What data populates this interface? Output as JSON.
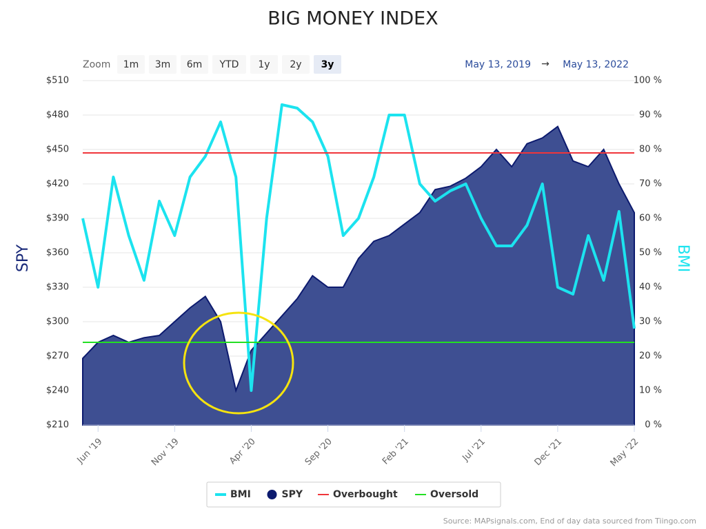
{
  "chart_data": {
    "type": "line",
    "title": "BIG MONEY INDEX",
    "zoom": {
      "label": "Zoom",
      "buttons": [
        "1m",
        "3m",
        "6m",
        "YTD",
        "1y",
        "2y",
        "3y"
      ],
      "selected": 6
    },
    "range": {
      "from": "May 13, 2019",
      "arrow": "→",
      "to": "May 13, 2022"
    },
    "source": "Source: MAPsignals.com, End of day data sourced from Tiingo.com",
    "y_label": "SPY",
    "y2_label": "BMI",
    "x": [
      "2019-05",
      "2019-06",
      "2019-07",
      "2019-08",
      "2019-09",
      "2019-10",
      "2019-11",
      "2019-12",
      "2020-01",
      "2020-02",
      "2020-03",
      "2020-04",
      "2020-05",
      "2020-06",
      "2020-07",
      "2020-08",
      "2020-09",
      "2020-10",
      "2020-11",
      "2020-12",
      "2021-01",
      "2021-02",
      "2021-03",
      "2021-04",
      "2021-05",
      "2021-06",
      "2021-07",
      "2021-08",
      "2021-09",
      "2021-10",
      "2021-11",
      "2021-12",
      "2022-01",
      "2022-02",
      "2022-03",
      "2022-04",
      "2022-05"
    ],
    "xlim": [
      "2019-05",
      "2022-05"
    ],
    "xticks": [
      {
        "value": "2019-06",
        "label": "Jun '19"
      },
      {
        "value": "2019-11",
        "label": "Nov '19"
      },
      {
        "value": "2020-04",
        "label": "Apr '20"
      },
      {
        "value": "2020-09",
        "label": "Sep '20"
      },
      {
        "value": "2021-02",
        "label": "Feb '21"
      },
      {
        "value": "2021-07",
        "label": "Jul '21"
      },
      {
        "value": "2021-12",
        "label": "Dec '21"
      },
      {
        "value": "2022-05",
        "label": "May '22"
      }
    ],
    "ylim": [
      210,
      510
    ],
    "yticks": [
      {
        "value": 210,
        "label": "$210"
      },
      {
        "value": 240,
        "label": "$240"
      },
      {
        "value": 270,
        "label": "$270"
      },
      {
        "value": 300,
        "label": "$300"
      },
      {
        "value": 330,
        "label": "$330"
      },
      {
        "value": 360,
        "label": "$360"
      },
      {
        "value": 390,
        "label": "$390"
      },
      {
        "value": 420,
        "label": "$420"
      },
      {
        "value": 450,
        "label": "$450"
      },
      {
        "value": 480,
        "label": "$480"
      },
      {
        "value": 510,
        "label": "$510"
      }
    ],
    "y2lim": [
      0,
      100
    ],
    "y2ticks": [
      {
        "value": 0,
        "label": "0 %"
      },
      {
        "value": 10,
        "label": "10 %"
      },
      {
        "value": 20,
        "label": "20 %"
      },
      {
        "value": 30,
        "label": "30 %"
      },
      {
        "value": 40,
        "label": "40 %"
      },
      {
        "value": 50,
        "label": "50 %"
      },
      {
        "value": 60,
        "label": "60 %"
      },
      {
        "value": 70,
        "label": "70 %"
      },
      {
        "value": 80,
        "label": "80 %"
      },
      {
        "value": 90,
        "label": "90 %"
      },
      {
        "value": 100,
        "label": "100 %"
      }
    ],
    "grid": true,
    "legend": "bottom",
    "series": [
      {
        "name": "BMI",
        "color": "#1ce3ef",
        "axis": "y2",
        "kind": "line",
        "values": [
          60,
          40,
          72,
          55,
          42,
          65,
          55,
          72,
          78,
          88,
          72,
          10,
          60,
          93,
          92,
          88,
          78,
          55,
          60,
          72,
          90,
          90,
          70,
          65,
          68,
          70,
          60,
          52,
          52,
          58,
          70,
          40,
          38,
          55,
          42,
          62,
          28
        ]
      },
      {
        "name": "SPY",
        "color": "#0c1a6e",
        "fill": "#3e4f92",
        "kind": "area",
        "values": [
          268,
          282,
          288,
          282,
          286,
          288,
          300,
          312,
          322,
          300,
          240,
          275,
          290,
          305,
          320,
          340,
          330,
          330,
          355,
          370,
          375,
          385,
          395,
          415,
          418,
          425,
          435,
          450,
          435,
          455,
          460,
          470,
          440,
          435,
          450,
          420,
          395
        ]
      }
    ],
    "reference_lines": [
      {
        "name": "Overbought",
        "value": 79,
        "color": "#f0353a",
        "axis": "y2"
      },
      {
        "name": "Oversold",
        "value": 24,
        "color": "#22e022",
        "axis": "y2"
      }
    ]
  }
}
